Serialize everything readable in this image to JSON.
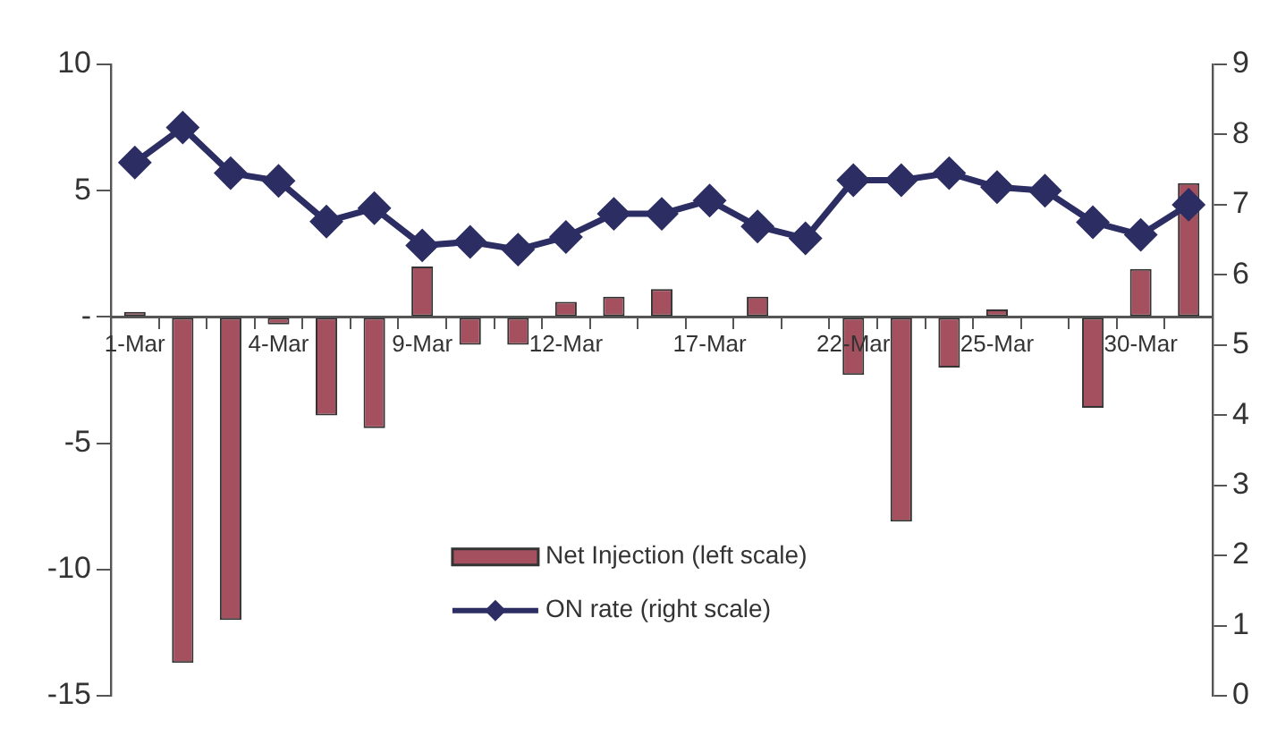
{
  "chart_data": {
    "type": "bar",
    "categories": [
      "1-Mar",
      null,
      null,
      "4-Mar",
      null,
      null,
      "9-Mar",
      null,
      null,
      "12-Mar",
      null,
      null,
      "17-Mar",
      null,
      null,
      "22-Mar",
      null,
      null,
      "25-Mar",
      null,
      null,
      "30-Mar",
      null
    ],
    "series": [
      {
        "name": "Net Injection (left scale)",
        "color": "#a5505f",
        "values": [
          0.2,
          -13.7,
          -12.0,
          -0.3,
          -3.9,
          -4.4,
          2.0,
          -1.1,
          -1.1,
          0.6,
          0.8,
          1.1,
          null,
          0.8,
          null,
          -2.3,
          -8.1,
          -2.0,
          0.3,
          null,
          -3.6,
          1.9,
          5.3
        ]
      },
      {
        "name": "ON rate (right scale)",
        "type": "line",
        "axis": "y2",
        "color": "#2b2d63",
        "values": [
          7.6,
          8.1,
          7.45,
          7.34,
          6.76,
          6.95,
          6.42,
          6.47,
          6.36,
          6.54,
          6.87,
          6.87,
          7.06,
          6.69,
          6.52,
          7.35,
          7.35,
          7.45,
          7.25,
          7.2,
          6.75,
          6.57,
          7.0
        ]
      }
    ],
    "ylim": [
      -15,
      10
    ],
    "yticks": [
      -15,
      -10,
      -5,
      {
        "value": 0,
        "label": "-"
      },
      5,
      10
    ],
    "y2lim": [
      0,
      9
    ],
    "y2ticks": [
      0,
      1,
      2,
      3,
      4,
      5,
      6,
      7,
      8,
      9
    ],
    "grid": false,
    "legend": "bottom",
    "marker": "diamond"
  }
}
